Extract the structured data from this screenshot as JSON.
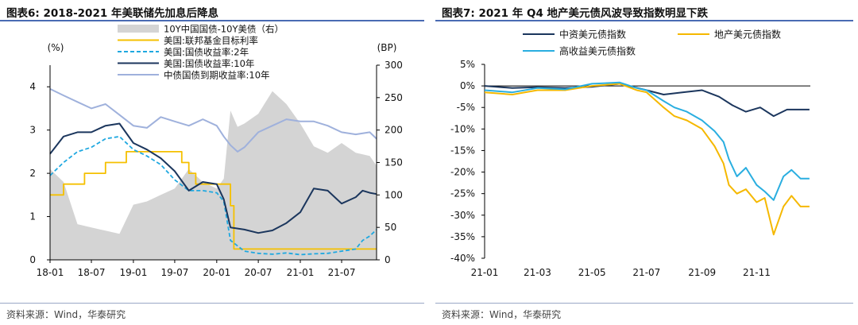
{
  "left": {
    "title": "图表6:  2018-2021 年美联储先加息后降息",
    "source": "资料来源：Wind，华泰研究"
  },
  "right": {
    "title": "图表7:  2021 年 Q4 地产美元债风波导致指数明显下跌",
    "source": "资料来源：Wind，华泰研究"
  },
  "chart_data": [
    {
      "type": "line",
      "title": "2018-2021 年美联储先加息后降息",
      "y_unit_left": "(%)",
      "y_unit_right": "(BP)",
      "ylim": [
        0,
        4.5
      ],
      "yticks": [
        0,
        1,
        2,
        3,
        4
      ],
      "y2lim": [
        0,
        300
      ],
      "y2ticks": [
        0,
        50,
        100,
        150,
        200,
        250,
        300
      ],
      "xlim": [
        "2018-01",
        "2021-12"
      ],
      "xticks": [
        "18-01",
        "18-07",
        "19-01",
        "19-07",
        "20-01",
        "20-07",
        "21-01",
        "21-07"
      ],
      "legend_position": "top",
      "series": [
        {
          "name": "10Y中国国债-10Y美债（右）",
          "kind": "area",
          "axis": "right",
          "color": "#d4d4d4",
          "x": [
            "2018-01",
            "2018-03",
            "2018-05",
            "2018-07",
            "2018-09",
            "2018-11",
            "2019-01",
            "2019-03",
            "2019-05",
            "2019-07",
            "2019-09",
            "2019-11",
            "2020-01",
            "2020-02",
            "2020-03",
            "2020-04",
            "2020-05",
            "2020-07",
            "2020-09",
            "2020-11",
            "2021-01",
            "2021-03",
            "2021-05",
            "2021-07",
            "2021-09",
            "2021-11",
            "2021-12"
          ],
          "values": [
            140,
            120,
            55,
            50,
            45,
            40,
            85,
            90,
            100,
            110,
            140,
            120,
            110,
            125,
            230,
            205,
            210,
            225,
            260,
            240,
            210,
            175,
            165,
            180,
            165,
            160,
            145
          ]
        },
        {
          "name": "美国:联邦基金目标利率",
          "kind": "step",
          "axis": "left",
          "color": "#f5c000",
          "x": [
            "2018-01",
            "2018-03",
            "2018-06",
            "2018-09",
            "2018-12",
            "2019-08",
            "2019-09",
            "2019-10",
            "2020-03",
            "2020-03-16",
            "2021-12"
          ],
          "values": [
            1.5,
            1.75,
            2.0,
            2.25,
            2.5,
            2.25,
            2.0,
            1.75,
            1.25,
            0.25,
            0.25
          ]
        },
        {
          "name": "美国:国债收益率:2年",
          "kind": "dashed",
          "axis": "left",
          "color": "#1fa8e0",
          "x": [
            "2018-01",
            "2018-03",
            "2018-05",
            "2018-07",
            "2018-09",
            "2018-11",
            "2019-01",
            "2019-03",
            "2019-05",
            "2019-07",
            "2019-09",
            "2019-11",
            "2020-01",
            "2020-02",
            "2020-03",
            "2020-05",
            "2020-07",
            "2020-09",
            "2020-11",
            "2021-01",
            "2021-03",
            "2021-05",
            "2021-07",
            "2021-09",
            "2021-10",
            "2021-11",
            "2021-12"
          ],
          "values": [
            1.95,
            2.25,
            2.5,
            2.6,
            2.8,
            2.85,
            2.55,
            2.4,
            2.2,
            1.85,
            1.6,
            1.6,
            1.55,
            1.35,
            0.45,
            0.2,
            0.15,
            0.13,
            0.16,
            0.12,
            0.14,
            0.15,
            0.2,
            0.25,
            0.45,
            0.55,
            0.7
          ]
        },
        {
          "name": "美国:国债收益率:10年",
          "kind": "line",
          "axis": "left",
          "color": "#1b365d",
          "x": [
            "2018-01",
            "2018-03",
            "2018-05",
            "2018-07",
            "2018-09",
            "2018-11",
            "2019-01",
            "2019-03",
            "2019-05",
            "2019-07",
            "2019-09",
            "2019-11",
            "2020-01",
            "2020-02",
            "2020-03",
            "2020-05",
            "2020-07",
            "2020-09",
            "2020-11",
            "2021-01",
            "2021-03",
            "2021-05",
            "2021-07",
            "2021-09",
            "2021-10",
            "2021-11",
            "2021-12"
          ],
          "values": [
            2.45,
            2.85,
            2.95,
            2.95,
            3.1,
            3.15,
            2.7,
            2.55,
            2.35,
            2.05,
            1.6,
            1.8,
            1.75,
            1.4,
            0.75,
            0.7,
            0.62,
            0.68,
            0.85,
            1.1,
            1.65,
            1.6,
            1.3,
            1.45,
            1.6,
            1.55,
            1.52
          ]
        },
        {
          "name": "中债国债到期收益率:10年",
          "kind": "line",
          "axis": "left",
          "color": "#9fb1dc",
          "x": [
            "2018-01",
            "2018-03",
            "2018-05",
            "2018-07",
            "2018-09",
            "2018-11",
            "2019-01",
            "2019-03",
            "2019-05",
            "2019-07",
            "2019-09",
            "2019-11",
            "2020-01",
            "2020-02",
            "2020-03",
            "2020-04",
            "2020-05",
            "2020-07",
            "2020-09",
            "2020-11",
            "2021-01",
            "2021-03",
            "2021-05",
            "2021-07",
            "2021-09",
            "2021-11",
            "2021-12"
          ],
          "values": [
            3.95,
            3.8,
            3.65,
            3.5,
            3.6,
            3.35,
            3.1,
            3.05,
            3.3,
            3.2,
            3.1,
            3.25,
            3.1,
            2.85,
            2.65,
            2.5,
            2.6,
            2.95,
            3.1,
            3.25,
            3.2,
            3.2,
            3.1,
            2.95,
            2.9,
            2.95,
            2.8
          ]
        }
      ]
    },
    {
      "type": "line",
      "title": "2021 年 Q4 地产美元债风波导致指数明显下跌",
      "ylim": [
        -40,
        5
      ],
      "yticks": [
        5,
        0,
        -5,
        -10,
        -15,
        -20,
        -25,
        -30,
        -35,
        -40
      ],
      "ytick_format": "percent",
      "xlim": [
        "2021-01",
        "2021-12-31"
      ],
      "xticks": [
        "21-01",
        "21-03",
        "21-05",
        "21-07",
        "21-09",
        "21-11"
      ],
      "legend_position": "top",
      "series": [
        {
          "name": "中资美元债指数",
          "color": "#1b365d",
          "x": [
            "2021-01-01",
            "2021-02-01",
            "2021-03-01",
            "2021-04-01",
            "2021-05-01",
            "2021-06-01",
            "2021-07-01",
            "2021-07-20",
            "2021-08-10",
            "2021-09-01",
            "2021-09-20",
            "2021-10-05",
            "2021-10-20",
            "2021-11-05",
            "2021-11-20",
            "2021-12-05",
            "2021-12-30"
          ],
          "values": [
            0,
            -0.5,
            -0.3,
            -0.5,
            -0.2,
            0.5,
            -1.0,
            -2.0,
            -1.5,
            -1.0,
            -2.5,
            -4.5,
            -6.0,
            -5.0,
            -7.0,
            -5.5,
            -5.5
          ]
        },
        {
          "name": "地产美元债指数",
          "color": "#f5b800",
          "x": [
            "2021-01-01",
            "2021-02-01",
            "2021-03-01",
            "2021-04-01",
            "2021-05-01",
            "2021-06-01",
            "2021-06-20",
            "2021-07-01",
            "2021-07-20",
            "2021-08-01",
            "2021-08-15",
            "2021-09-01",
            "2021-09-15",
            "2021-09-25",
            "2021-10-01",
            "2021-10-10",
            "2021-10-20",
            "2021-11-01",
            "2021-11-10",
            "2021-11-20",
            "2021-12-01",
            "2021-12-10",
            "2021-12-20",
            "2021-12-30"
          ],
          "values": [
            -1.5,
            -2.0,
            -1.0,
            -1.0,
            0.0,
            0.5,
            -1.0,
            -1.5,
            -5.0,
            -7.0,
            -8.0,
            -10.0,
            -14.0,
            -18.0,
            -23.0,
            -25.0,
            -24.0,
            -27.0,
            -26.0,
            -34.5,
            -28.0,
            -25.5,
            -28.0,
            -28.0
          ]
        },
        {
          "name": "高收益美元债指数",
          "color": "#2aaee0",
          "x": [
            "2021-01-01",
            "2021-02-01",
            "2021-03-01",
            "2021-04-01",
            "2021-05-01",
            "2021-06-01",
            "2021-06-20",
            "2021-07-01",
            "2021-07-20",
            "2021-08-01",
            "2021-08-15",
            "2021-09-01",
            "2021-09-15",
            "2021-09-25",
            "2021-10-01",
            "2021-10-10",
            "2021-10-20",
            "2021-11-01",
            "2021-11-10",
            "2021-11-20",
            "2021-12-01",
            "2021-12-10",
            "2021-12-20",
            "2021-12-30"
          ],
          "values": [
            -1.0,
            -1.5,
            -0.5,
            -0.8,
            0.5,
            0.8,
            -0.5,
            -1.0,
            -3.5,
            -5.0,
            -6.0,
            -8.0,
            -10.5,
            -13.0,
            -17.0,
            -21.0,
            -19.0,
            -23.0,
            -24.5,
            -26.5,
            -21.0,
            -19.5,
            -21.5,
            -21.5
          ]
        }
      ]
    }
  ]
}
